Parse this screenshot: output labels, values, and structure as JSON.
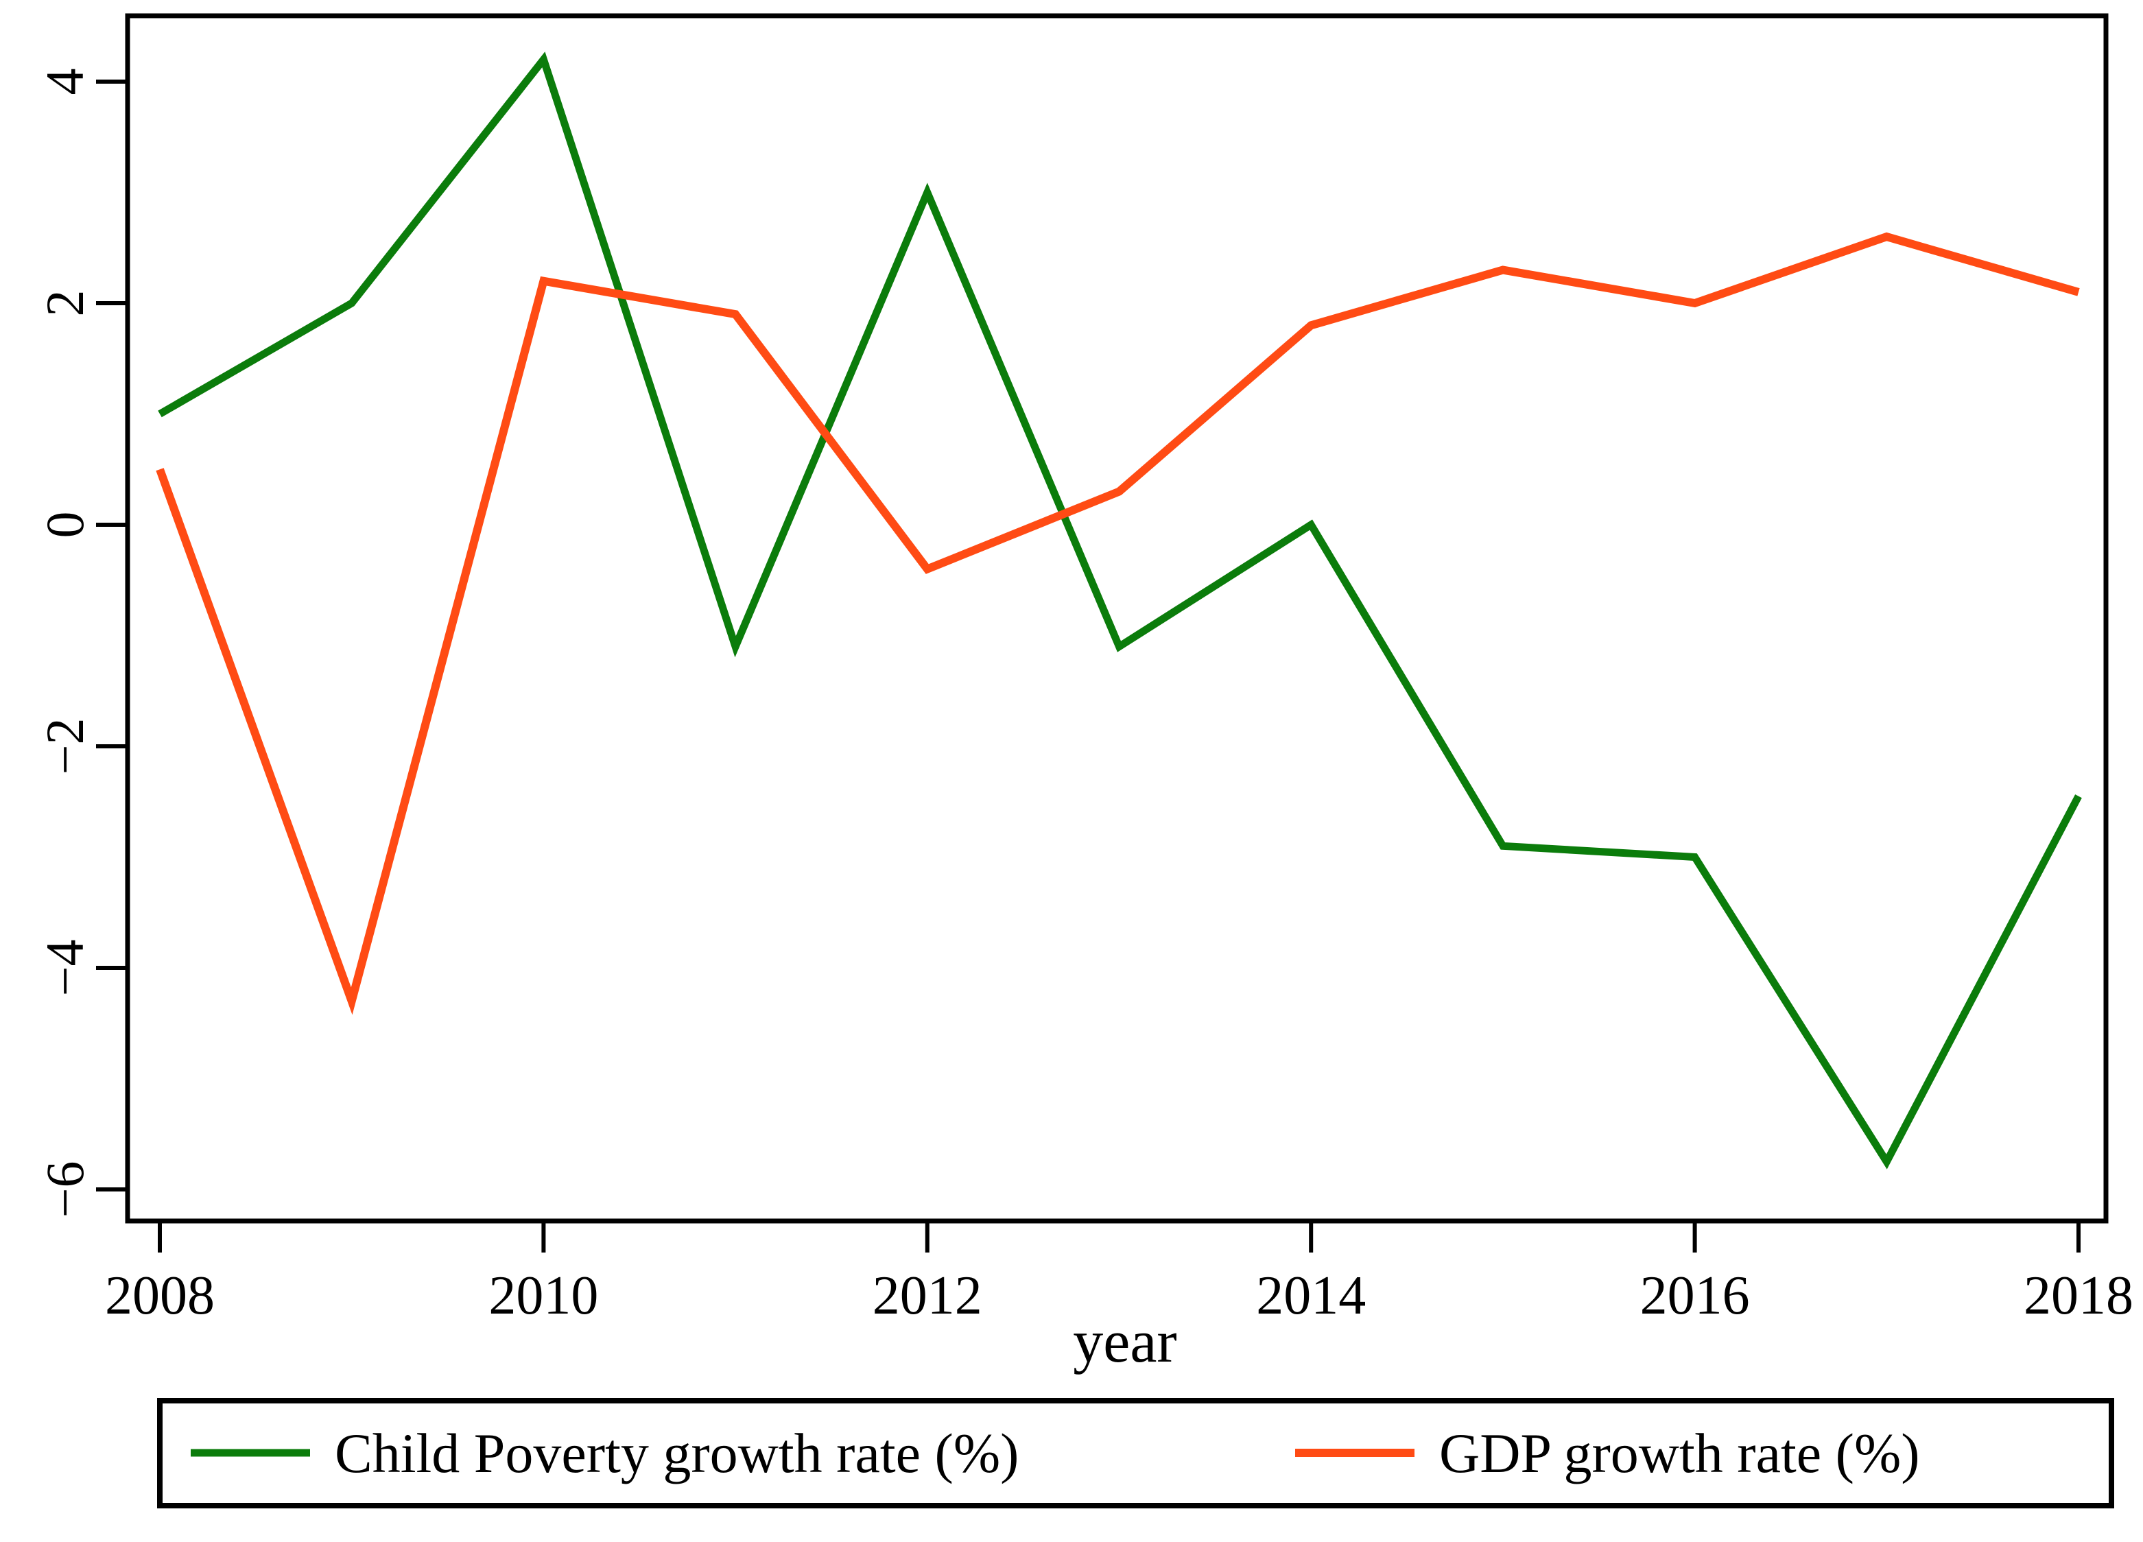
{
  "figure": {
    "background_color": "#ffffff",
    "axis_color": "#000000"
  },
  "chart_data": {
    "type": "line",
    "title": "",
    "xlabel": "year",
    "ylabel": "",
    "x": [
      2008,
      2009,
      2010,
      2011,
      2012,
      2013,
      2014,
      2015,
      2016,
      2017,
      2018
    ],
    "series": [
      {
        "name": "Child Poverty growth rate (%)",
        "color": "#0b7c0b",
        "stroke_width": 11,
        "values": [
          1.0,
          2.0,
          4.2,
          -1.1,
          3.0,
          -1.1,
          0.0,
          -2.9,
          -3.0,
          -5.75,
          -2.45
        ]
      },
      {
        "name": "GDP growth rate (%)",
        "color": "#ff4b14",
        "stroke_width": 12,
        "values": [
          0.5,
          -4.3,
          2.2,
          1.9,
          -0.4,
          0.3,
          1.8,
          2.3,
          2.0,
          2.6,
          2.1
        ]
      }
    ],
    "xlim": [
      2008,
      2018
    ],
    "ylim": [
      -6,
      4
    ],
    "xticks": [
      2008,
      2010,
      2012,
      2014,
      2016,
      2018
    ],
    "xtick_labels": [
      "2008",
      "2010",
      "2012",
      "2014",
      "2016",
      "2018"
    ],
    "yticks": [
      4,
      2,
      0,
      -2,
      -4,
      -6
    ],
    "ytick_labels": [
      "4",
      "2",
      "0",
      "−2",
      "−4",
      "−6"
    ],
    "grid": false,
    "legend_position": "bottom-box"
  }
}
